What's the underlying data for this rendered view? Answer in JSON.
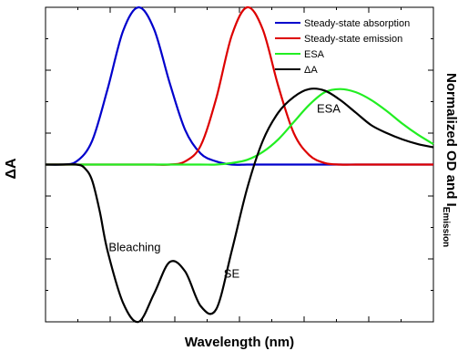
{
  "chart_data": {
    "type": "line",
    "xlabel": "Wavelength (nm)",
    "ylabel_left": "ΔA",
    "ylabel_right_main": "Normalized OD and I",
    "ylabel_right_sub": "Emission",
    "tick_labels_shown": false,
    "xlim": [
      0,
      1
    ],
    "ylim": [
      -1,
      1
    ],
    "grid": false,
    "legend_position": "top-right",
    "series": [
      {
        "name": "Steady-state absorption",
        "color": "#0000cc",
        "x": [
          0.0,
          0.04,
          0.08,
          0.12,
          0.16,
          0.2,
          0.24,
          0.28,
          0.32,
          0.36,
          0.4,
          0.44,
          0.48,
          0.52,
          0.56,
          0.6,
          0.64,
          0.68,
          0.72,
          0.76,
          0.8,
          0.84,
          0.88,
          0.92,
          0.96,
          1.0
        ],
        "y": [
          0.0,
          0.0,
          0.02,
          0.15,
          0.48,
          0.85,
          1.0,
          0.86,
          0.52,
          0.22,
          0.07,
          0.02,
          0.0,
          0.0,
          0.0,
          0.0,
          0.0,
          0.0,
          0.0,
          0.0,
          0.0,
          0.0,
          0.0,
          0.0,
          0.0,
          0.0
        ]
      },
      {
        "name": "Steady-state emission",
        "color": "#dd0000",
        "x": [
          0.0,
          0.04,
          0.08,
          0.12,
          0.16,
          0.2,
          0.24,
          0.28,
          0.32,
          0.36,
          0.4,
          0.44,
          0.48,
          0.52,
          0.56,
          0.6,
          0.64,
          0.68,
          0.72,
          0.76,
          0.8,
          0.84,
          0.88,
          0.92,
          0.96,
          1.0
        ],
        "y": [
          0.0,
          0.0,
          0.0,
          0.0,
          0.0,
          0.0,
          0.0,
          0.0,
          0.0,
          0.02,
          0.12,
          0.42,
          0.82,
          1.0,
          0.86,
          0.5,
          0.2,
          0.06,
          0.01,
          0.0,
          0.0,
          0.0,
          0.0,
          0.0,
          0.0,
          0.0
        ]
      },
      {
        "name": "ESA",
        "color": "#22ee22",
        "x": [
          0.0,
          0.08,
          0.16,
          0.24,
          0.32,
          0.4,
          0.44,
          0.48,
          0.52,
          0.56,
          0.6,
          0.64,
          0.68,
          0.72,
          0.76,
          0.8,
          0.84,
          0.88,
          0.92,
          0.96,
          1.0
        ],
        "y": [
          0.0,
          0.0,
          0.0,
          0.0,
          0.0,
          0.0,
          0.0,
          0.01,
          0.03,
          0.08,
          0.16,
          0.27,
          0.38,
          0.46,
          0.48,
          0.46,
          0.41,
          0.34,
          0.26,
          0.19,
          0.13
        ]
      },
      {
        "name": "ΔA",
        "color": "#000000",
        "x": [
          0.0,
          0.04,
          0.08,
          0.1,
          0.12,
          0.14,
          0.16,
          0.2,
          0.24,
          0.28,
          0.32,
          0.36,
          0.4,
          0.44,
          0.48,
          0.52,
          0.56,
          0.6,
          0.64,
          0.68,
          0.72,
          0.76,
          0.8,
          0.84,
          0.88,
          0.92,
          0.96,
          1.0
        ],
        "y": [
          0.0,
          0.0,
          0.0,
          -0.02,
          -0.1,
          -0.3,
          -0.55,
          -0.88,
          -1.0,
          -0.82,
          -0.62,
          -0.68,
          -0.9,
          -0.92,
          -0.55,
          -0.15,
          0.15,
          0.33,
          0.43,
          0.48,
          0.47,
          0.41,
          0.33,
          0.25,
          0.2,
          0.16,
          0.13,
          0.11
        ]
      }
    ],
    "annotations": [
      {
        "text": "Bleaching",
        "x": 0.23,
        "y": -0.55
      },
      {
        "text": "SE",
        "x": 0.48,
        "y": -0.72
      },
      {
        "text": "ESA",
        "x": 0.73,
        "y": 0.33
      }
    ]
  }
}
